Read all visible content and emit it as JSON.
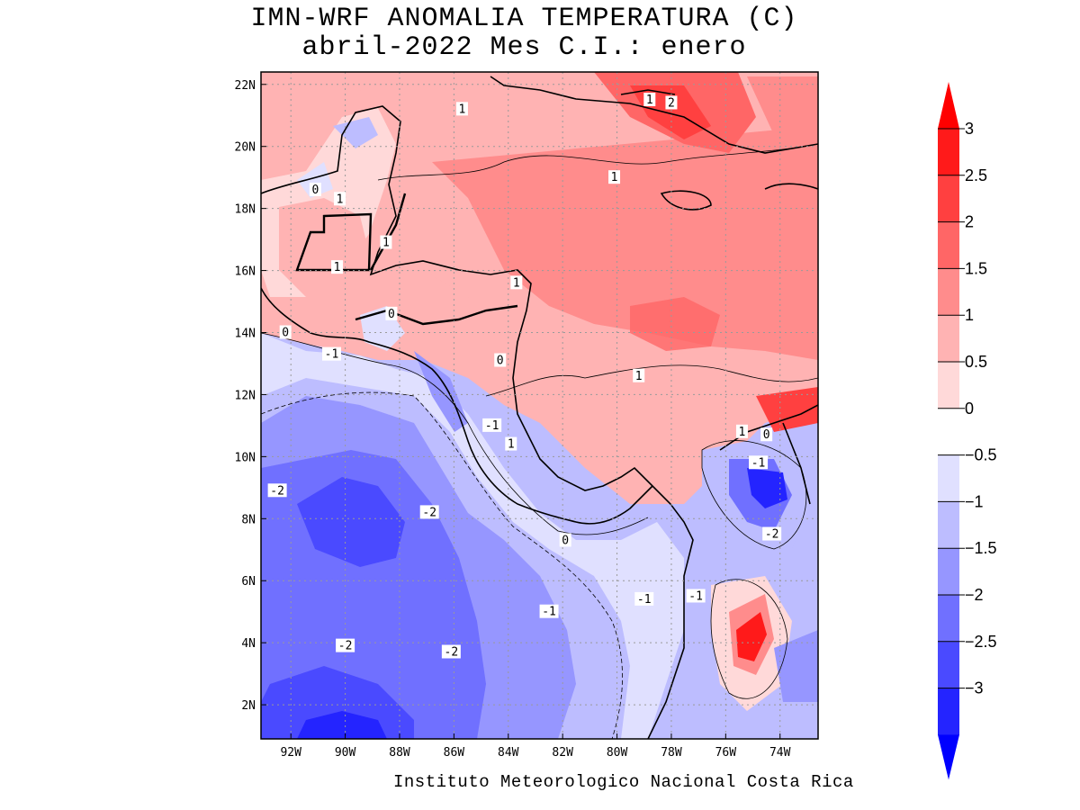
{
  "title": {
    "line1": "IMN-WRF  ANOMALIA TEMPERATURA (C)",
    "line2": "abril-2022 Mes C.I.: enero"
  },
  "credit": "Instituto Meteorologico Nacional Costa Rica",
  "axes": {
    "lon_ticks": [
      "92W",
      "90W",
      "88W",
      "86W",
      "84W",
      "82W",
      "80W",
      "78W",
      "76W",
      "74W"
    ],
    "lat_ticks": [
      "22N",
      "20N",
      "18N",
      "16N",
      "14N",
      "12N",
      "10N",
      "8N",
      "6N",
      "4N",
      "2N"
    ],
    "lon_range": [
      -93.1,
      -72.6
    ],
    "lat_range": [
      0.9,
      22.4
    ]
  },
  "colorbar": {
    "labels": [
      "3",
      "2.5",
      "2",
      "1.5",
      "1",
      "0.5",
      "0",
      "-0.5",
      "-1",
      "-1.5",
      "-2",
      "-2.5",
      "-3"
    ],
    "colors": [
      "#ff1a1a",
      "#ff4040",
      "#ff6666",
      "#ff8c8c",
      "#ffb3b3",
      "#ffd9d9",
      "#ffffff",
      "#e0e0ff",
      "#bdbdff",
      "#9696ff",
      "#7070ff",
      "#4a4aff",
      "#2424ff"
    ],
    "over_color": "#ff0000",
    "under_color": "#0000ff"
  },
  "contour_labels": [
    {
      "text": "1",
      "lon": -85.7,
      "lat": 21.2
    },
    {
      "text": "1",
      "lon": -78.8,
      "lat": 21.5
    },
    {
      "text": "2",
      "lon": -78.0,
      "lat": 21.4
    },
    {
      "text": "1",
      "lon": -80.1,
      "lat": 19.0
    },
    {
      "text": "0",
      "lon": -91.1,
      "lat": 18.6
    },
    {
      "text": "1",
      "lon": -90.2,
      "lat": 18.3
    },
    {
      "text": "1",
      "lon": -88.5,
      "lat": 16.9
    },
    {
      "text": "1",
      "lon": -90.3,
      "lat": 16.1
    },
    {
      "text": "1",
      "lon": -83.7,
      "lat": 15.6
    },
    {
      "text": "0",
      "lon": -88.3,
      "lat": 14.6
    },
    {
      "text": "0",
      "lon": -92.2,
      "lat": 14.0
    },
    {
      "text": "-1",
      "lon": -90.5,
      "lat": 13.3
    },
    {
      "text": "0",
      "lon": -84.3,
      "lat": 13.1
    },
    {
      "text": "1",
      "lon": -79.2,
      "lat": 12.6
    },
    {
      "text": "-1",
      "lon": -84.6,
      "lat": 11.0
    },
    {
      "text": "1",
      "lon": -83.9,
      "lat": 10.4
    },
    {
      "text": "1",
      "lon": -75.4,
      "lat": 10.8
    },
    {
      "text": "0",
      "lon": -74.5,
      "lat": 10.7
    },
    {
      "text": "-1",
      "lon": -74.8,
      "lat": 9.8
    },
    {
      "text": "-2",
      "lon": -92.5,
      "lat": 8.9
    },
    {
      "text": "-2",
      "lon": -86.9,
      "lat": 8.2
    },
    {
      "text": "-2",
      "lon": -74.3,
      "lat": 7.5
    },
    {
      "text": "0",
      "lon": -81.9,
      "lat": 7.3
    },
    {
      "text": "-1",
      "lon": -82.5,
      "lat": 5.0
    },
    {
      "text": "-1",
      "lon": -79.0,
      "lat": 5.4
    },
    {
      "text": "-1",
      "lon": -77.1,
      "lat": 5.5
    },
    {
      "text": "-2",
      "lon": -90.0,
      "lat": 3.9
    },
    {
      "text": "-2",
      "lon": -86.1,
      "lat": 3.7
    }
  ]
}
